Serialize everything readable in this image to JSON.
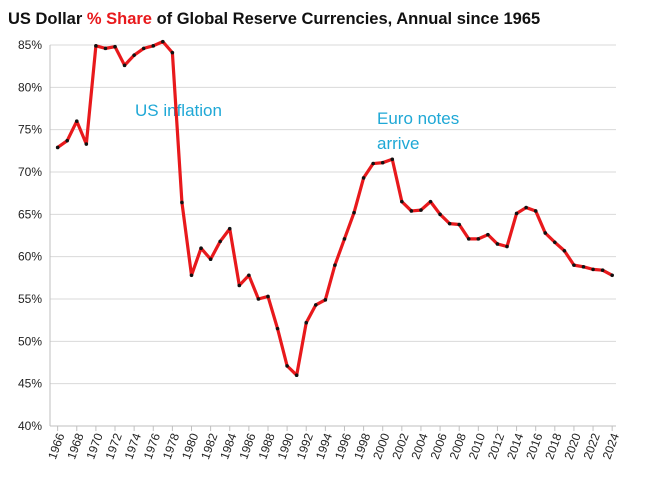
{
  "chart_data": {
    "type": "line",
    "title": [
      {
        "text": "US Dollar ",
        "color": "#111111"
      },
      {
        "text": "% Share",
        "color": "#e8191c"
      },
      {
        "text": " of Global Reserve Currencies, Annual since 1965",
        "color": "#111111"
      }
    ],
    "annotations": [
      "US inflation",
      "Euro notes",
      "arrive"
    ],
    "x": [
      1966,
      1967,
      1968,
      1969,
      1970,
      1971,
      1972,
      1973,
      1974,
      1975,
      1976,
      1977,
      1978,
      1979,
      1980,
      1981,
      1982,
      1983,
      1984,
      1985,
      1986,
      1987,
      1988,
      1989,
      1990,
      1991,
      1992,
      1993,
      1994,
      1995,
      1996,
      1997,
      1998,
      1999,
      2000,
      2001,
      2002,
      2003,
      2004,
      2005,
      2006,
      2007,
      2008,
      2009,
      2010,
      2011,
      2012,
      2013,
      2014,
      2015,
      2016,
      2017,
      2018,
      2019,
      2020,
      2021,
      2022,
      2023,
      2024
    ],
    "values": [
      72.9,
      73.7,
      76.0,
      73.3,
      84.9,
      84.6,
      84.8,
      82.6,
      83.8,
      84.6,
      84.9,
      85.4,
      84.1,
      66.4,
      57.8,
      61.0,
      59.7,
      61.8,
      63.3,
      56.6,
      57.8,
      55.0,
      55.3,
      51.5,
      47.1,
      46.0,
      52.2,
      54.3,
      54.9,
      59.0,
      62.1,
      65.2,
      69.3,
      71.0,
      71.1,
      71.5,
      66.5,
      65.4,
      65.5,
      66.5,
      65.0,
      63.9,
      63.8,
      62.1,
      62.1,
      62.6,
      61.5,
      61.2,
      65.1,
      65.8,
      65.4,
      62.8,
      61.7,
      60.7,
      59.0,
      58.8,
      58.5,
      58.4,
      57.8
    ],
    "color": "#e8191c",
    "marker_color": "#111111",
    "xlim": [
      1965.2,
      2024.4
    ],
    "xticks": [
      1966,
      1968,
      1970,
      1972,
      1974,
      1976,
      1978,
      1980,
      1982,
      1984,
      1986,
      1988,
      1990,
      1992,
      1994,
      1996,
      1998,
      2000,
      2002,
      2004,
      2006,
      2008,
      2010,
      2012,
      2014,
      2016,
      2018,
      2020,
      2022,
      2024
    ],
    "ylim": [
      40,
      85
    ],
    "yticks": [
      {
        "value": 40,
        "label": "40%"
      },
      {
        "value": 45,
        "label": "45%"
      },
      {
        "value": 50,
        "label": "50%"
      },
      {
        "value": 55,
        "label": "55%"
      },
      {
        "value": 60,
        "label": "60%"
      },
      {
        "value": 65,
        "label": "65%"
      },
      {
        "value": 70,
        "label": "70%"
      },
      {
        "value": 75,
        "label": "75%"
      },
      {
        "value": 80,
        "label": "80%"
      },
      {
        "value": 85,
        "label": "85%"
      }
    ],
    "grid": true
  }
}
